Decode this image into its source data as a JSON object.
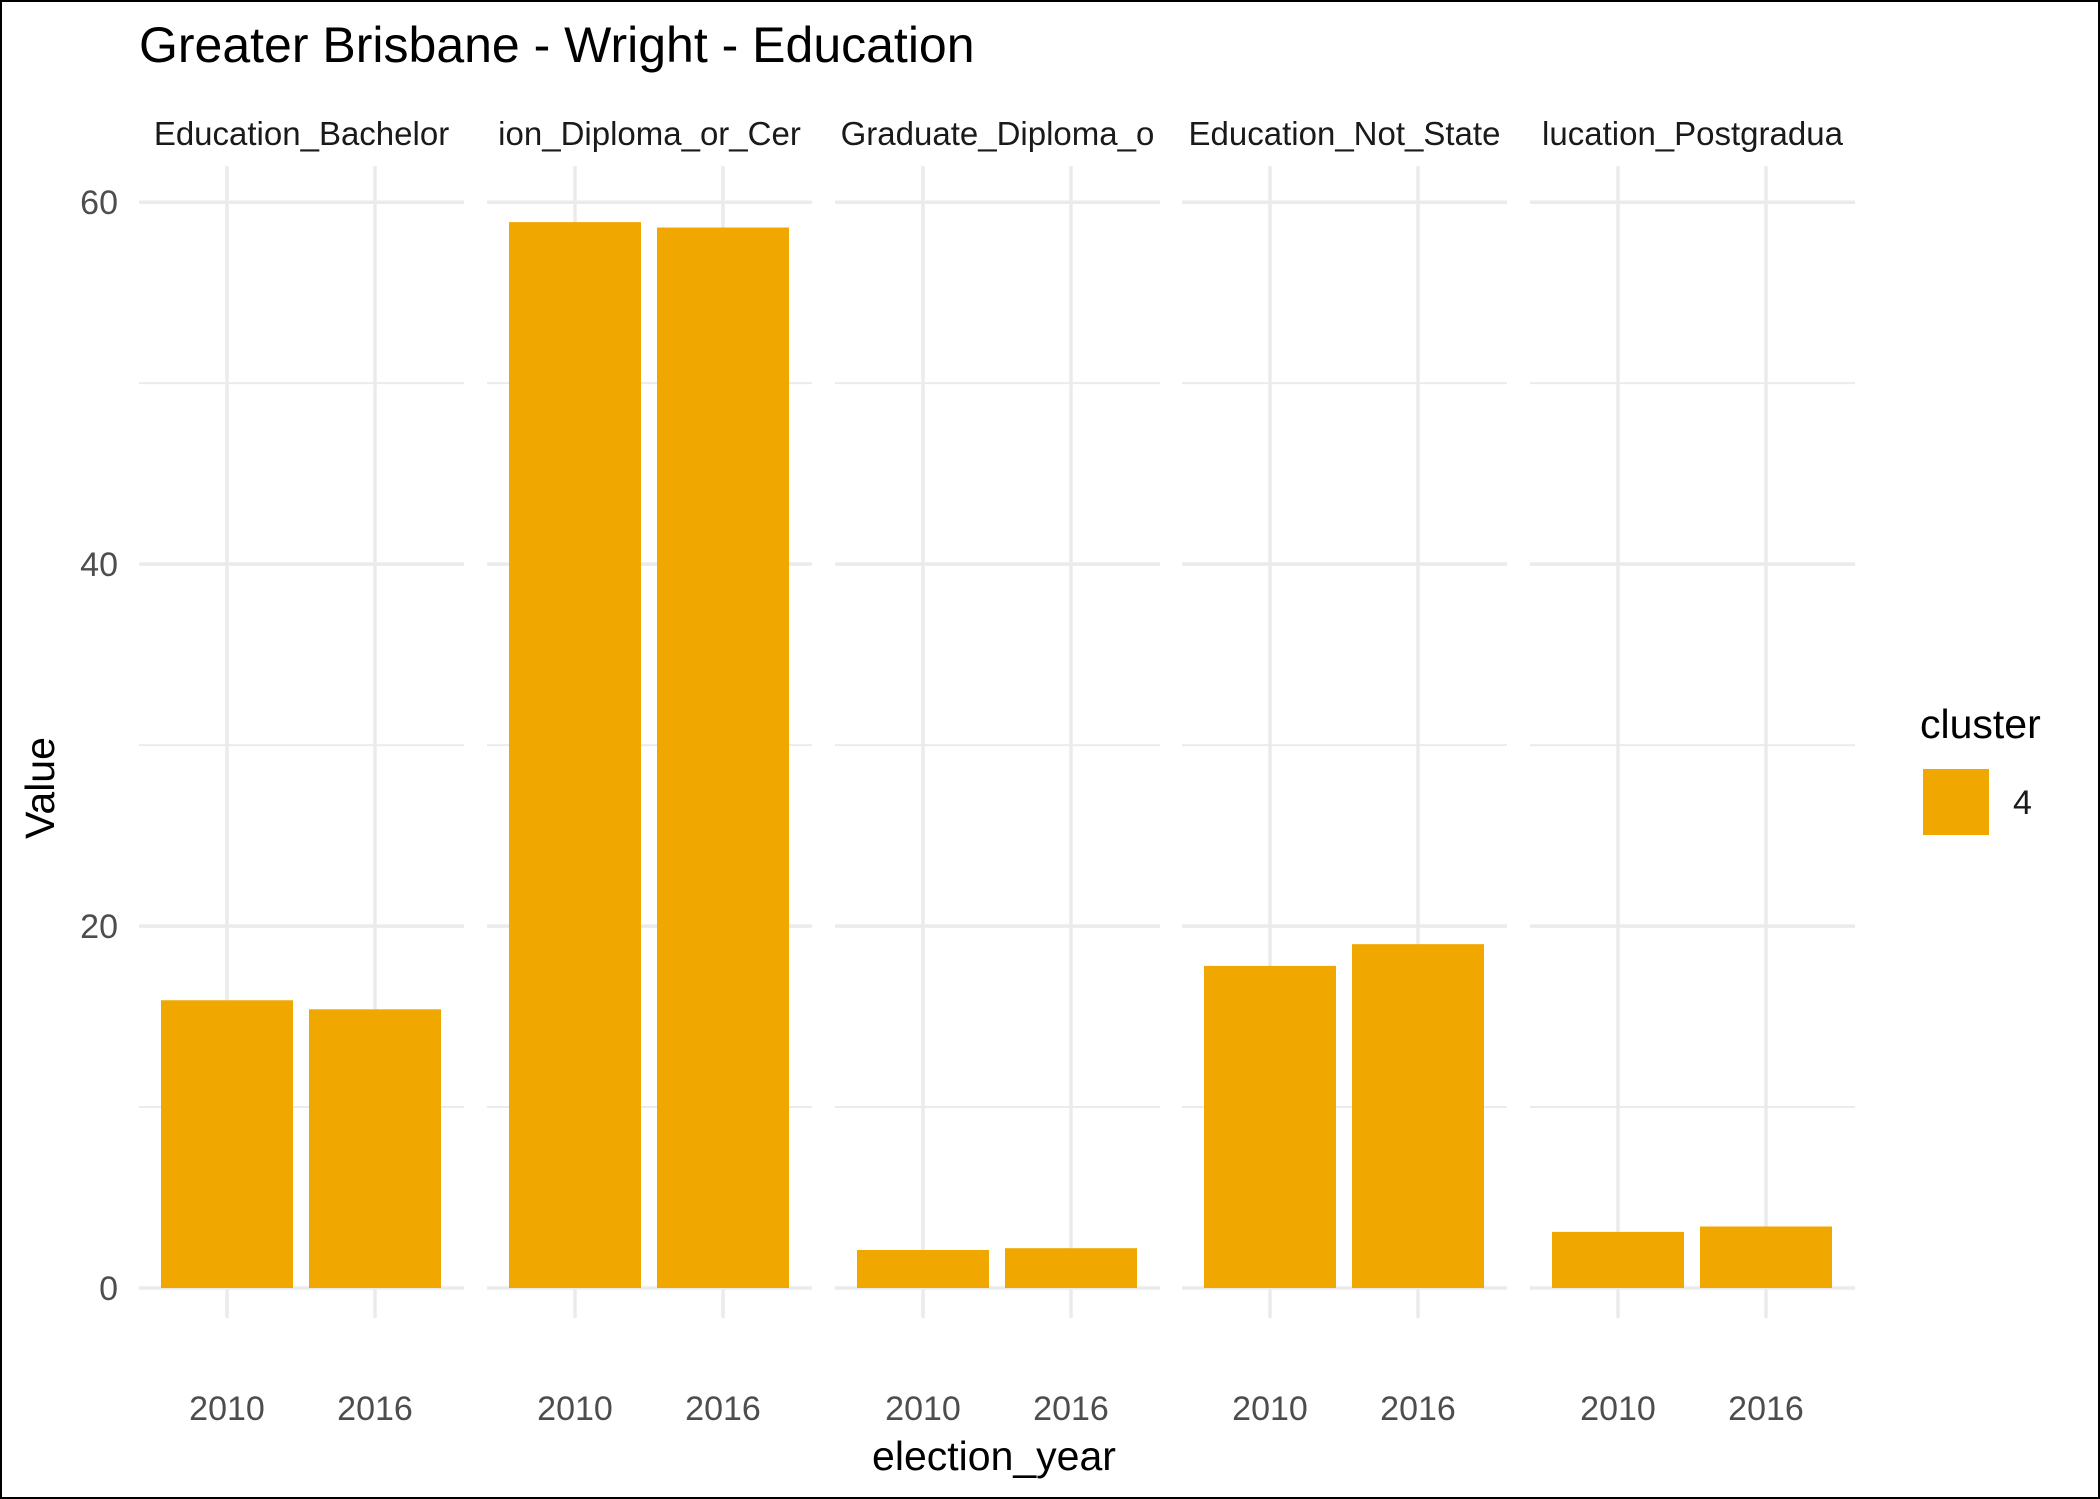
{
  "chart_data": {
    "type": "bar",
    "title": "Greater Brisbane - Wright - Education",
    "xlabel": "election_year",
    "ylabel": "Value",
    "ylim": [
      0,
      62
    ],
    "y_ticks": [
      0,
      20,
      40,
      60
    ],
    "grid": true,
    "facets": [
      {
        "strip": "Education_Bachelor",
        "categories": [
          "2010",
          "2016"
        ],
        "values": [
          15.9,
          15.4
        ]
      },
      {
        "strip": "ion_Diploma_or_Cer",
        "categories": [
          "2010",
          "2016"
        ],
        "values": [
          58.9,
          58.6
        ]
      },
      {
        "strip": "Graduate_Diploma_o",
        "categories": [
          "2010",
          "2016"
        ],
        "values": [
          2.1,
          2.2
        ]
      },
      {
        "strip": "Education_Not_State",
        "categories": [
          "2010",
          "2016"
        ],
        "values": [
          17.8,
          19.0
        ]
      },
      {
        "strip": "lucation_Postgradua",
        "categories": [
          "2010",
          "2016"
        ],
        "values": [
          3.1,
          3.4
        ]
      }
    ],
    "legend": {
      "title": "cluster",
      "position": "right",
      "entries": [
        {
          "label": "4",
          "color": "#F0A800"
        }
      ]
    },
    "bar_color": "#F0A800"
  }
}
